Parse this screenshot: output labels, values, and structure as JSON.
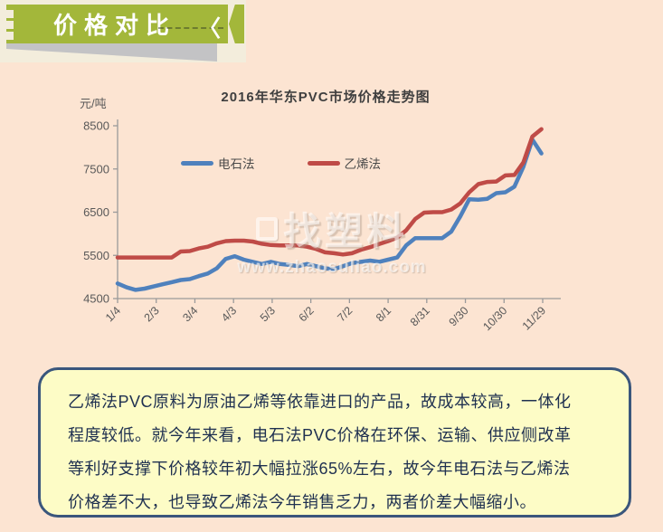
{
  "page": {
    "bg": "#fce4d2"
  },
  "header": {
    "title": "价格对比",
    "chevron": "〈",
    "ribbon_color": "#a3b73a",
    "shadow_color": "#c3c3c5",
    "strip_color": "#f3eddc"
  },
  "watermark": {
    "logo": "找塑料",
    "url": "www.zhaosuliao.com"
  },
  "note": {
    "bg": "#fdfcc6",
    "border": "#3a567c",
    "lines": [
      "乙烯法PVC原料为原油乙烯等依靠进口的产品，故成本较高，一体化",
      "程度较低。就今年来看，电石法PVC价格在环保、运输、供应侧改革",
      "等利好支撑下价格较年初大幅拉涨65%左右，故今年电石法与乙烯法",
      "价格差不大，也导致乙烯法今年销售乏力，两者价差大幅缩小。"
    ]
  },
  "chart_data": {
    "type": "line",
    "title": "2016年华东PVC市场价格走势图",
    "xlabel": "",
    "ylabel": "元/吨",
    "ylim": [
      4500,
      8500
    ],
    "y_ticks": [
      4500,
      5500,
      6500,
      7500,
      8500
    ],
    "x_tick_labels": [
      "1/4",
      "2/3",
      "3/4",
      "4/3",
      "5/3",
      "6/2",
      "7/2",
      "8/1",
      "8/31",
      "9/30",
      "10/30",
      "11/29"
    ],
    "grid": false,
    "legend_position": "top",
    "x": [
      "1/4",
      "1/11",
      "1/18",
      "1/25",
      "2/1",
      "2/8",
      "2/15",
      "2/22",
      "2/29",
      "3/7",
      "3/14",
      "3/21",
      "3/28",
      "4/4",
      "4/11",
      "4/18",
      "4/25",
      "5/2",
      "5/9",
      "5/16",
      "5/23",
      "5/30",
      "6/6",
      "6/13",
      "6/20",
      "6/27",
      "7/4",
      "7/11",
      "7/18",
      "7/25",
      "8/1",
      "8/8",
      "8/15",
      "8/22",
      "8/29",
      "9/5",
      "9/12",
      "9/19",
      "9/26",
      "10/3",
      "10/10",
      "10/17",
      "10/24",
      "10/31",
      "11/7",
      "11/14",
      "11/21",
      "11/28"
    ],
    "series": [
      {
        "name": "电石法",
        "color": "#4f81bd",
        "values": [
          4850,
          4760,
          4700,
          4730,
          4780,
          4830,
          4880,
          4930,
          4950,
          5020,
          5080,
          5200,
          5420,
          5480,
          5400,
          5350,
          5300,
          5350,
          5300,
          5280,
          5250,
          5300,
          5250,
          5200,
          5180,
          5250,
          5320,
          5350,
          5380,
          5350,
          5400,
          5450,
          5730,
          5900,
          5900,
          5900,
          5900,
          6050,
          6400,
          6800,
          6790,
          6810,
          6940,
          6960,
          7090,
          7550,
          8180,
          7860
        ]
      },
      {
        "name": "乙烯法",
        "color": "#bf4b47",
        "values": [
          5450,
          5450,
          5450,
          5450,
          5450,
          5450,
          5450,
          5590,
          5600,
          5660,
          5700,
          5780,
          5830,
          5840,
          5840,
          5820,
          5770,
          5740,
          5730,
          5730,
          5730,
          5700,
          5650,
          5570,
          5550,
          5520,
          5550,
          5630,
          5690,
          5760,
          5830,
          5910,
          6080,
          6340,
          6490,
          6500,
          6500,
          6560,
          6700,
          6960,
          7150,
          7200,
          7210,
          7350,
          7360,
          7650,
          8250,
          8420
        ]
      }
    ]
  }
}
